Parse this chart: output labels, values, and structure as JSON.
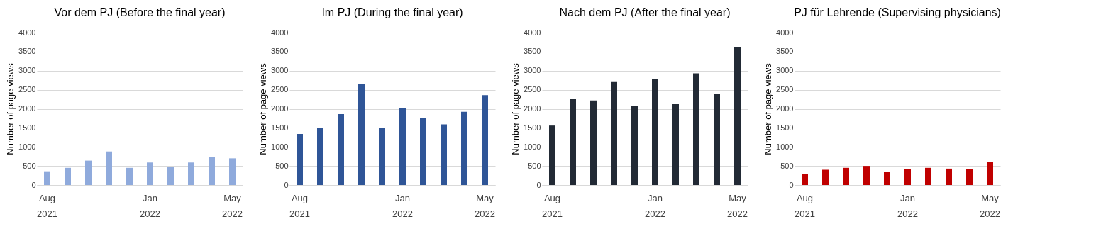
{
  "chart_data": [
    {
      "type": "bar",
      "title": "Vor dem PJ (Before the final year)",
      "ylabel": "Number of page views",
      "categories": [
        "Aug 2021",
        null,
        null,
        null,
        null,
        "Jan 2022",
        null,
        null,
        null,
        "May 2022"
      ],
      "series": [
        {
          "color": "#8faadc",
          "values": [
            360,
            450,
            640,
            880,
            450,
            590,
            470,
            590,
            740,
            700
          ]
        }
      ],
      "ylim": [
        0,
        4000
      ],
      "yticks": [
        0,
        500,
        1000,
        1500,
        2000,
        2500,
        3000,
        3500,
        4000
      ],
      "grid": "y",
      "legend": false
    },
    {
      "type": "bar",
      "title": "Im PJ (During the final year)",
      "ylabel": "Number of page views",
      "categories": [
        "Aug 2021",
        null,
        null,
        null,
        null,
        "Jan 2022",
        null,
        null,
        null,
        "May 2022"
      ],
      "series": [
        {
          "color": "#2f5597",
          "values": [
            1340,
            1500,
            1860,
            2650,
            1490,
            2020,
            1750,
            1590,
            1920,
            2360
          ]
        }
      ],
      "ylim": [
        0,
        4000
      ],
      "yticks": [
        0,
        500,
        1000,
        1500,
        2000,
        2500,
        3000,
        3500,
        4000
      ],
      "grid": "y",
      "legend": false
    },
    {
      "type": "bar",
      "title": "Nach dem PJ (After the final year)",
      "ylabel": "Number of page views",
      "categories": [
        "Aug 2021",
        null,
        null,
        null,
        null,
        "Jan 2022",
        null,
        null,
        null,
        "May 2022"
      ],
      "series": [
        {
          "color": "#222a35",
          "values": [
            1560,
            2270,
            2220,
            2720,
            2080,
            2770,
            2130,
            2930,
            2380,
            3610
          ]
        }
      ],
      "ylim": [
        0,
        4000
      ],
      "yticks": [
        0,
        500,
        1000,
        1500,
        2000,
        2500,
        3000,
        3500,
        4000
      ],
      "grid": "y",
      "legend": false
    },
    {
      "type": "bar",
      "title": "PJ für Lehrende (Supervising physicians)",
      "ylabel": "Number of page views",
      "categories": [
        "Aug 2021",
        null,
        null,
        null,
        null,
        "Jan 2022",
        null,
        null,
        null,
        "May 2022"
      ],
      "series": [
        {
          "color": "#c00000",
          "values": [
            290,
            400,
            450,
            500,
            340,
            410,
            450,
            430,
            410,
            600
          ]
        }
      ],
      "ylim": [
        0,
        4000
      ],
      "yticks": [
        0,
        500,
        1000,
        1500,
        2000,
        2500,
        3000,
        3500,
        4000
      ],
      "grid": "y",
      "legend": false
    }
  ]
}
